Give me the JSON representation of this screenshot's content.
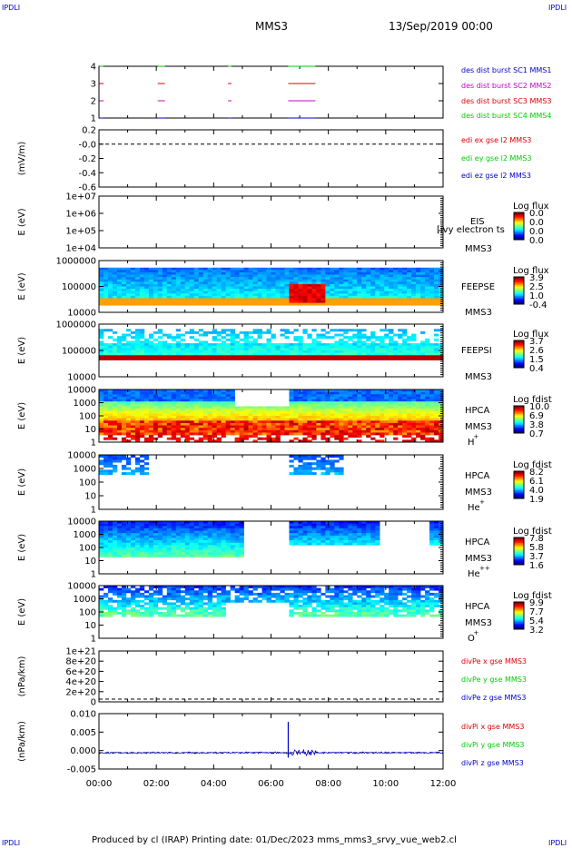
{
  "corner_label": "IPDLI",
  "header": {
    "spacecraft": "MMS3",
    "date": "13/Sep/2019 00:00"
  },
  "footer": "Produced by cl (IRAP)   Printing date: 01/Dec/2023   mms_mms3_srvy_vue_web2.cl",
  "colors": {
    "blue": "#0000cc",
    "red": "#dd0000",
    "green": "#00cc00",
    "magenta": "#cc00cc"
  },
  "x_ticks": [
    "00:00",
    "02:00",
    "04:00",
    "06:00",
    "08:00",
    "10:00",
    "12:00"
  ],
  "chart_data": [
    {
      "type": "line",
      "title": "burst",
      "xlim": [
        0,
        12
      ],
      "yticks": [
        "1",
        "2",
        "3",
        "4"
      ],
      "series": [
        {
          "name": "des dist burst SC1 MMS1",
          "color": "#0000cc",
          "y": 1
        },
        {
          "name": "des dist burst SC2 MMS2",
          "color": "#cc00cc",
          "y": 2
        },
        {
          "name": "des dist burst SC3 MMS3",
          "color": "#dd0000",
          "y": 3
        },
        {
          "name": "des dist burst SC4 MMS4",
          "color": "#00cc00",
          "y": 4
        }
      ],
      "intervals": [
        [
          0.02,
          0.15
        ],
        [
          2.05,
          2.3
        ],
        [
          4.5,
          4.62
        ],
        [
          6.6,
          7.55
        ]
      ]
    },
    {
      "type": "line",
      "title": "edi",
      "ylabel": "(mV/m)",
      "ylim": [
        -0.7,
        0.2
      ],
      "yticks": [
        "0.2",
        "-0.0",
        "-0.2",
        "-0.4",
        "-0.6"
      ],
      "series": [
        {
          "name": "edi ex gse l2 MMS3",
          "color": "#dd0000"
        },
        {
          "name": "edi ey gse l2 MMS3",
          "color": "#00cc00"
        },
        {
          "name": "edi ez gse l2 MMS3",
          "color": "#0000cc"
        }
      ]
    },
    {
      "type": "heatmap",
      "title": "EIS",
      "ylabel": "E (eV)",
      "yticks": [
        "1e+07",
        "1e+06",
        "1e+05",
        "1e+04"
      ],
      "labels": [
        "EIS",
        "MMS3"
      ],
      "overlay": "[ivy electron ts",
      "colorbar": {
        "title": "Log flux",
        "ticks": [
          "0.0",
          "0.0",
          "0.0",
          "0.0"
        ]
      }
    },
    {
      "type": "heatmap",
      "title": "FEEPSE",
      "ylabel": "E (eV)",
      "yticks": [
        "1000000",
        "100000",
        "10000"
      ],
      "labels": [
        "FEEPSE",
        "MMS3"
      ],
      "colorbar": {
        "title": "Log flux",
        "ticks": [
          "3.9",
          "2.5",
          "1.0",
          "-0.4"
        ]
      }
    },
    {
      "type": "heatmap",
      "title": "FEEPSI",
      "ylabel": "E (eV)",
      "yticks": [
        "1000000",
        "100000",
        "10000"
      ],
      "labels": [
        "FEEPSI",
        "MMS3"
      ],
      "colorbar": {
        "title": "Log flux",
        "ticks": [
          "3.7",
          "2.6",
          "1.5",
          "0.4"
        ]
      }
    },
    {
      "type": "heatmap",
      "title": "HPCA H+",
      "ylabel": "E (eV)",
      "yticks": [
        "10000",
        "1000",
        "100",
        "10",
        "1"
      ],
      "labels": [
        "HPCA",
        "MMS3",
        "H",
        "+"
      ],
      "colorbar": {
        "title": "Log fdist",
        "ticks": [
          "10.0",
          "6.9",
          "3.8",
          "0.7"
        ]
      }
    },
    {
      "type": "heatmap",
      "title": "HPCA He+",
      "ylabel": "E (eV)",
      "yticks": [
        "10000",
        "1000",
        "100",
        "10",
        "1"
      ],
      "labels": [
        "HPCA",
        "MMS3",
        "He",
        "+"
      ],
      "colorbar": {
        "title": "Log fdist",
        "ticks": [
          "8.2",
          "6.1",
          "4.0",
          "1.9"
        ]
      }
    },
    {
      "type": "heatmap",
      "title": "HPCA He++",
      "ylabel": "E (eV)",
      "yticks": [
        "10000",
        "1000",
        "100",
        "10",
        "1"
      ],
      "labels": [
        "HPCA",
        "MMS3",
        "He",
        "++"
      ],
      "colorbar": {
        "title": "Log fdist",
        "ticks": [
          "7.8",
          "5.8",
          "3.7",
          "1.6"
        ]
      }
    },
    {
      "type": "heatmap",
      "title": "HPCA O+",
      "ylabel": "E (eV)",
      "yticks": [
        "10000",
        "1000",
        "100",
        "10",
        "1"
      ],
      "labels": [
        "HPCA",
        "MMS3",
        "O",
        "+"
      ],
      "colorbar": {
        "title": "Log fdist",
        "ticks": [
          "9.9",
          "7.7",
          "5.4",
          "3.2"
        ]
      }
    },
    {
      "type": "line",
      "title": "divPe",
      "ylabel": "(nPa/km)",
      "ylim": [
        -5e+18,
        1.05e+21
      ],
      "yticks": [
        "1e+21",
        "8e+20",
        "6e+20",
        "4e+20",
        "2e+20",
        "0"
      ],
      "series": [
        {
          "name": "divPe x gse MMS3",
          "color": "#dd0000"
        },
        {
          "name": "divPe y gse MMS3",
          "color": "#00cc00"
        },
        {
          "name": "divPe z gse MMS3",
          "color": "#0000cc"
        }
      ]
    },
    {
      "type": "line",
      "title": "divPi",
      "ylabel": "(nPa/km)",
      "ylim": [
        -0.005,
        0.012
      ],
      "yticks": [
        "0.010",
        "0.005",
        "0.000",
        "-0.005"
      ],
      "series": [
        {
          "name": "divPi x gse MMS3",
          "color": "#dd0000"
        },
        {
          "name": "divPi y gse MMS3",
          "color": "#00cc00"
        },
        {
          "name": "divPi z gse MMS3",
          "color": "#0000cc"
        }
      ],
      "spike": {
        "x": 6.6,
        "y": 0.0095,
        "y_min": -0.0015
      }
    }
  ]
}
